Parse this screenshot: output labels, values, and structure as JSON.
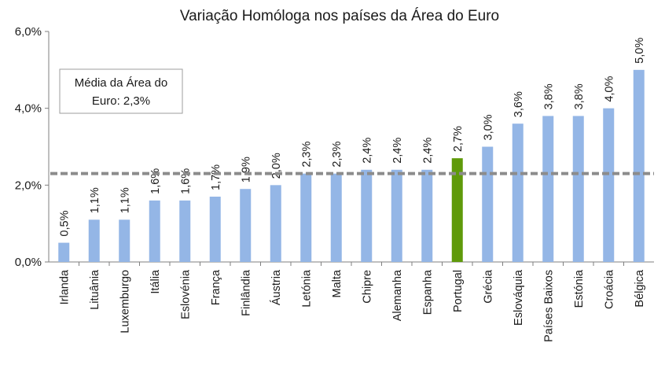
{
  "chart_data": {
    "type": "bar",
    "title": "Variação Homóloga nos países da Área do Euro",
    "xlabel": "",
    "ylabel": "",
    "ylim": [
      0,
      6
    ],
    "yticks": [
      "0,0%",
      "2,0%",
      "4,0%",
      "6,0%"
    ],
    "grid": false,
    "categories": [
      "Irlanda",
      "Lituânia",
      "Luxemburgo",
      "Itália",
      "Eslovénia",
      "França",
      "Finlândia",
      "Áustria",
      "Letónia",
      "Malta",
      "Chipre",
      "Alemanha",
      "Espanha",
      "Portugal",
      "Grécia",
      "Eslováquia",
      "Países Baixos",
      "Estónia",
      "Croácia",
      "Bélgica"
    ],
    "values": [
      0.5,
      1.1,
      1.1,
      1.6,
      1.6,
      1.7,
      1.9,
      2.0,
      2.3,
      2.3,
      2.4,
      2.4,
      2.4,
      2.7,
      3.0,
      3.6,
      3.8,
      3.8,
      4.0,
      5.0
    ],
    "data_labels": [
      "0,5%",
      "1,1%",
      "1,1%",
      "1,6%",
      "1,6%",
      "1,7%",
      "1,9%",
      "2,0%",
      "2,3%",
      "2,3%",
      "2,4%",
      "2,4%",
      "2,4%",
      "2,7%",
      "3,0%",
      "3,6%",
      "3,8%",
      "3,8%",
      "4,0%",
      "5,0%"
    ],
    "highlight_category": "Portugal",
    "reference_line": {
      "value": 2.3,
      "style": "dashed"
    },
    "annotation": {
      "lines": [
        "Média da Área do",
        "Euro: 2,3%"
      ]
    },
    "colors": {
      "bar": "#94b6e6",
      "highlight": "#5f9a0a",
      "reference": "#8c8c8c",
      "axis": "#7f7f7f"
    }
  }
}
